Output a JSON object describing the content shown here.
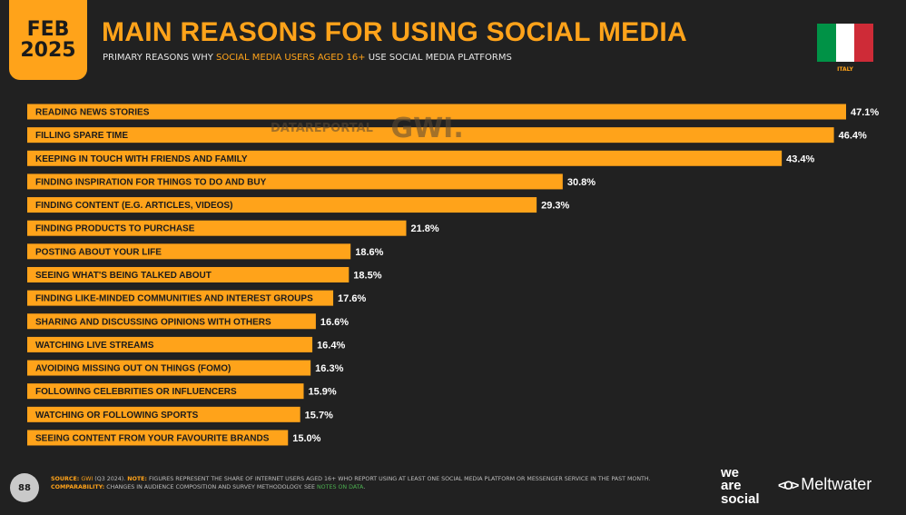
{
  "header": {
    "month": "FEB",
    "year": "2025",
    "title": "MAIN REASONS FOR USING SOCIAL MEDIA",
    "subtitle_pre": "PRIMARY REASONS WHY ",
    "subtitle_highlight": "SOCIAL MEDIA USERS AGED 16+",
    "subtitle_post": " USE SOCIAL MEDIA PLATFORMS",
    "country": "ITALY"
  },
  "watermark": {
    "left": "DATAREPORTAL",
    "right": "GWI."
  },
  "colors": {
    "accent": "#ffa31a",
    "background": "#212121",
    "flag": [
      "#009246",
      "#ffffff",
      "#ce2b37"
    ]
  },
  "chart_data": {
    "type": "bar",
    "orientation": "horizontal",
    "categories": [
      "READING NEWS STORIES",
      "FILLING SPARE TIME",
      "KEEPING IN TOUCH WITH FRIENDS AND FAMILY",
      "FINDING INSPIRATION FOR THINGS TO DO AND BUY",
      "FINDING CONTENT (E.G. ARTICLES, VIDEOS)",
      "FINDING PRODUCTS TO PURCHASE",
      "POSTING ABOUT YOUR LIFE",
      "SEEING WHAT'S BEING TALKED ABOUT",
      "FINDING LIKE-MINDED COMMUNITIES AND INTEREST GROUPS",
      "SHARING AND DISCUSSING OPINIONS WITH OTHERS",
      "WATCHING LIVE STREAMS",
      "AVOIDING MISSING OUT ON THINGS (FOMO)",
      "FOLLOWING CELEBRITIES OR INFLUENCERS",
      "WATCHING OR FOLLOWING SPORTS",
      "SEEING CONTENT FROM YOUR FAVOURITE BRANDS"
    ],
    "values": [
      47.1,
      46.4,
      43.4,
      30.8,
      29.3,
      21.8,
      18.6,
      18.5,
      17.6,
      16.6,
      16.4,
      16.3,
      15.9,
      15.7,
      15.0
    ],
    "value_labels": [
      "47.1%",
      "46.4%",
      "43.4%",
      "30.8%",
      "29.3%",
      "21.8%",
      "18.6%",
      "18.5%",
      "17.6%",
      "16.6%",
      "16.4%",
      "16.3%",
      "15.9%",
      "15.7%",
      "15.0%"
    ],
    "xlim": [
      0,
      47.1
    ],
    "grid": false,
    "legend": "none"
  },
  "footer": {
    "page_number": "88",
    "source_key": "SOURCE:",
    "source_name": "GWI",
    "source_detail": " (Q3 2024). ",
    "note_key": "NOTE:",
    "note_text": " FIGURES REPRESENT THE SHARE OF INTERNET USERS AGED 16+ WHO REPORT USING AT LEAST ONE SOCIAL MEDIA PLATFORM OR MESSENGER SERVICE IN THE PAST MONTH.",
    "comparability_key": "COMPARABILITY:",
    "comparability_text": " CHANGES IN AUDIENCE COMPOSITION AND SURVEY METHODOLOGY. SEE ",
    "notes_link": "NOTES ON DATA",
    "comparability_end": ".",
    "brand_was_1": "we",
    "brand_was_2": "are",
    "brand_was_3": "social",
    "brand_mw": "Meltwater"
  }
}
